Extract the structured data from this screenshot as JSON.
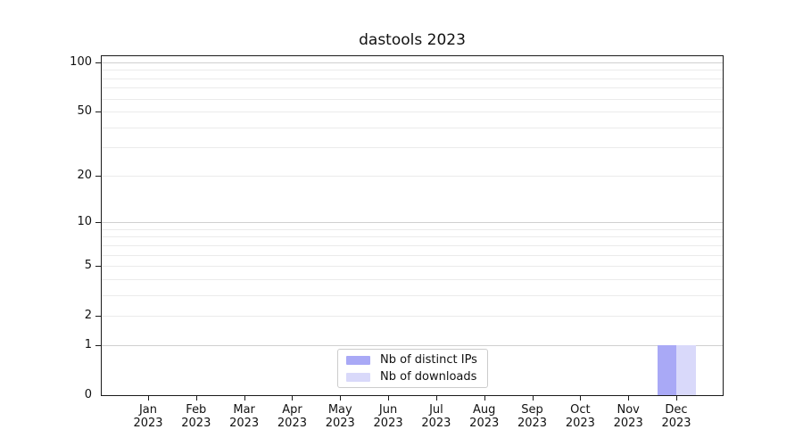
{
  "chart_data": {
    "type": "bar",
    "title": "dastools 2023",
    "categories": [
      "Jan 2023",
      "Feb 2023",
      "Mar 2023",
      "Apr 2023",
      "May 2023",
      "Jun 2023",
      "Jul 2023",
      "Aug 2023",
      "Sep 2023",
      "Oct 2023",
      "Nov 2023",
      "Dec 2023"
    ],
    "months": [
      "Jan",
      "Feb",
      "Mar",
      "Apr",
      "May",
      "Jun",
      "Jul",
      "Aug",
      "Sep",
      "Oct",
      "Nov",
      "Dec"
    ],
    "year_label": "2023",
    "series": [
      {
        "name": "Nb of distinct IPs",
        "color": "#a9a9f6",
        "values": [
          0,
          0,
          0,
          0,
          0,
          0,
          0,
          0,
          0,
          0,
          0,
          1
        ]
      },
      {
        "name": "Nb of downloads",
        "color": "#d9d9fa",
        "values": [
          0,
          0,
          0,
          0,
          0,
          0,
          0,
          0,
          0,
          0,
          0,
          1
        ]
      }
    ],
    "xlabel": "",
    "ylabel": "",
    "yscale": "log1p",
    "ylim": [
      0,
      100
    ],
    "y_tick_values": [
      0,
      1,
      2,
      5,
      10,
      20,
      50,
      100
    ],
    "y_major_gridlines": [
      1,
      10,
      100
    ],
    "y_minor_gridlines": [
      2,
      3,
      4,
      5,
      6,
      7,
      8,
      9,
      20,
      30,
      40,
      50,
      60,
      70,
      80,
      90
    ],
    "grid": true,
    "legend_position": "lower center",
    "colors": {
      "major_grid": "#d0d0d0",
      "minor_grid": "#ebebeb",
      "axis": "#1a1a1a",
      "legend_border": "#cccccc",
      "background": "#ffffff"
    }
  }
}
